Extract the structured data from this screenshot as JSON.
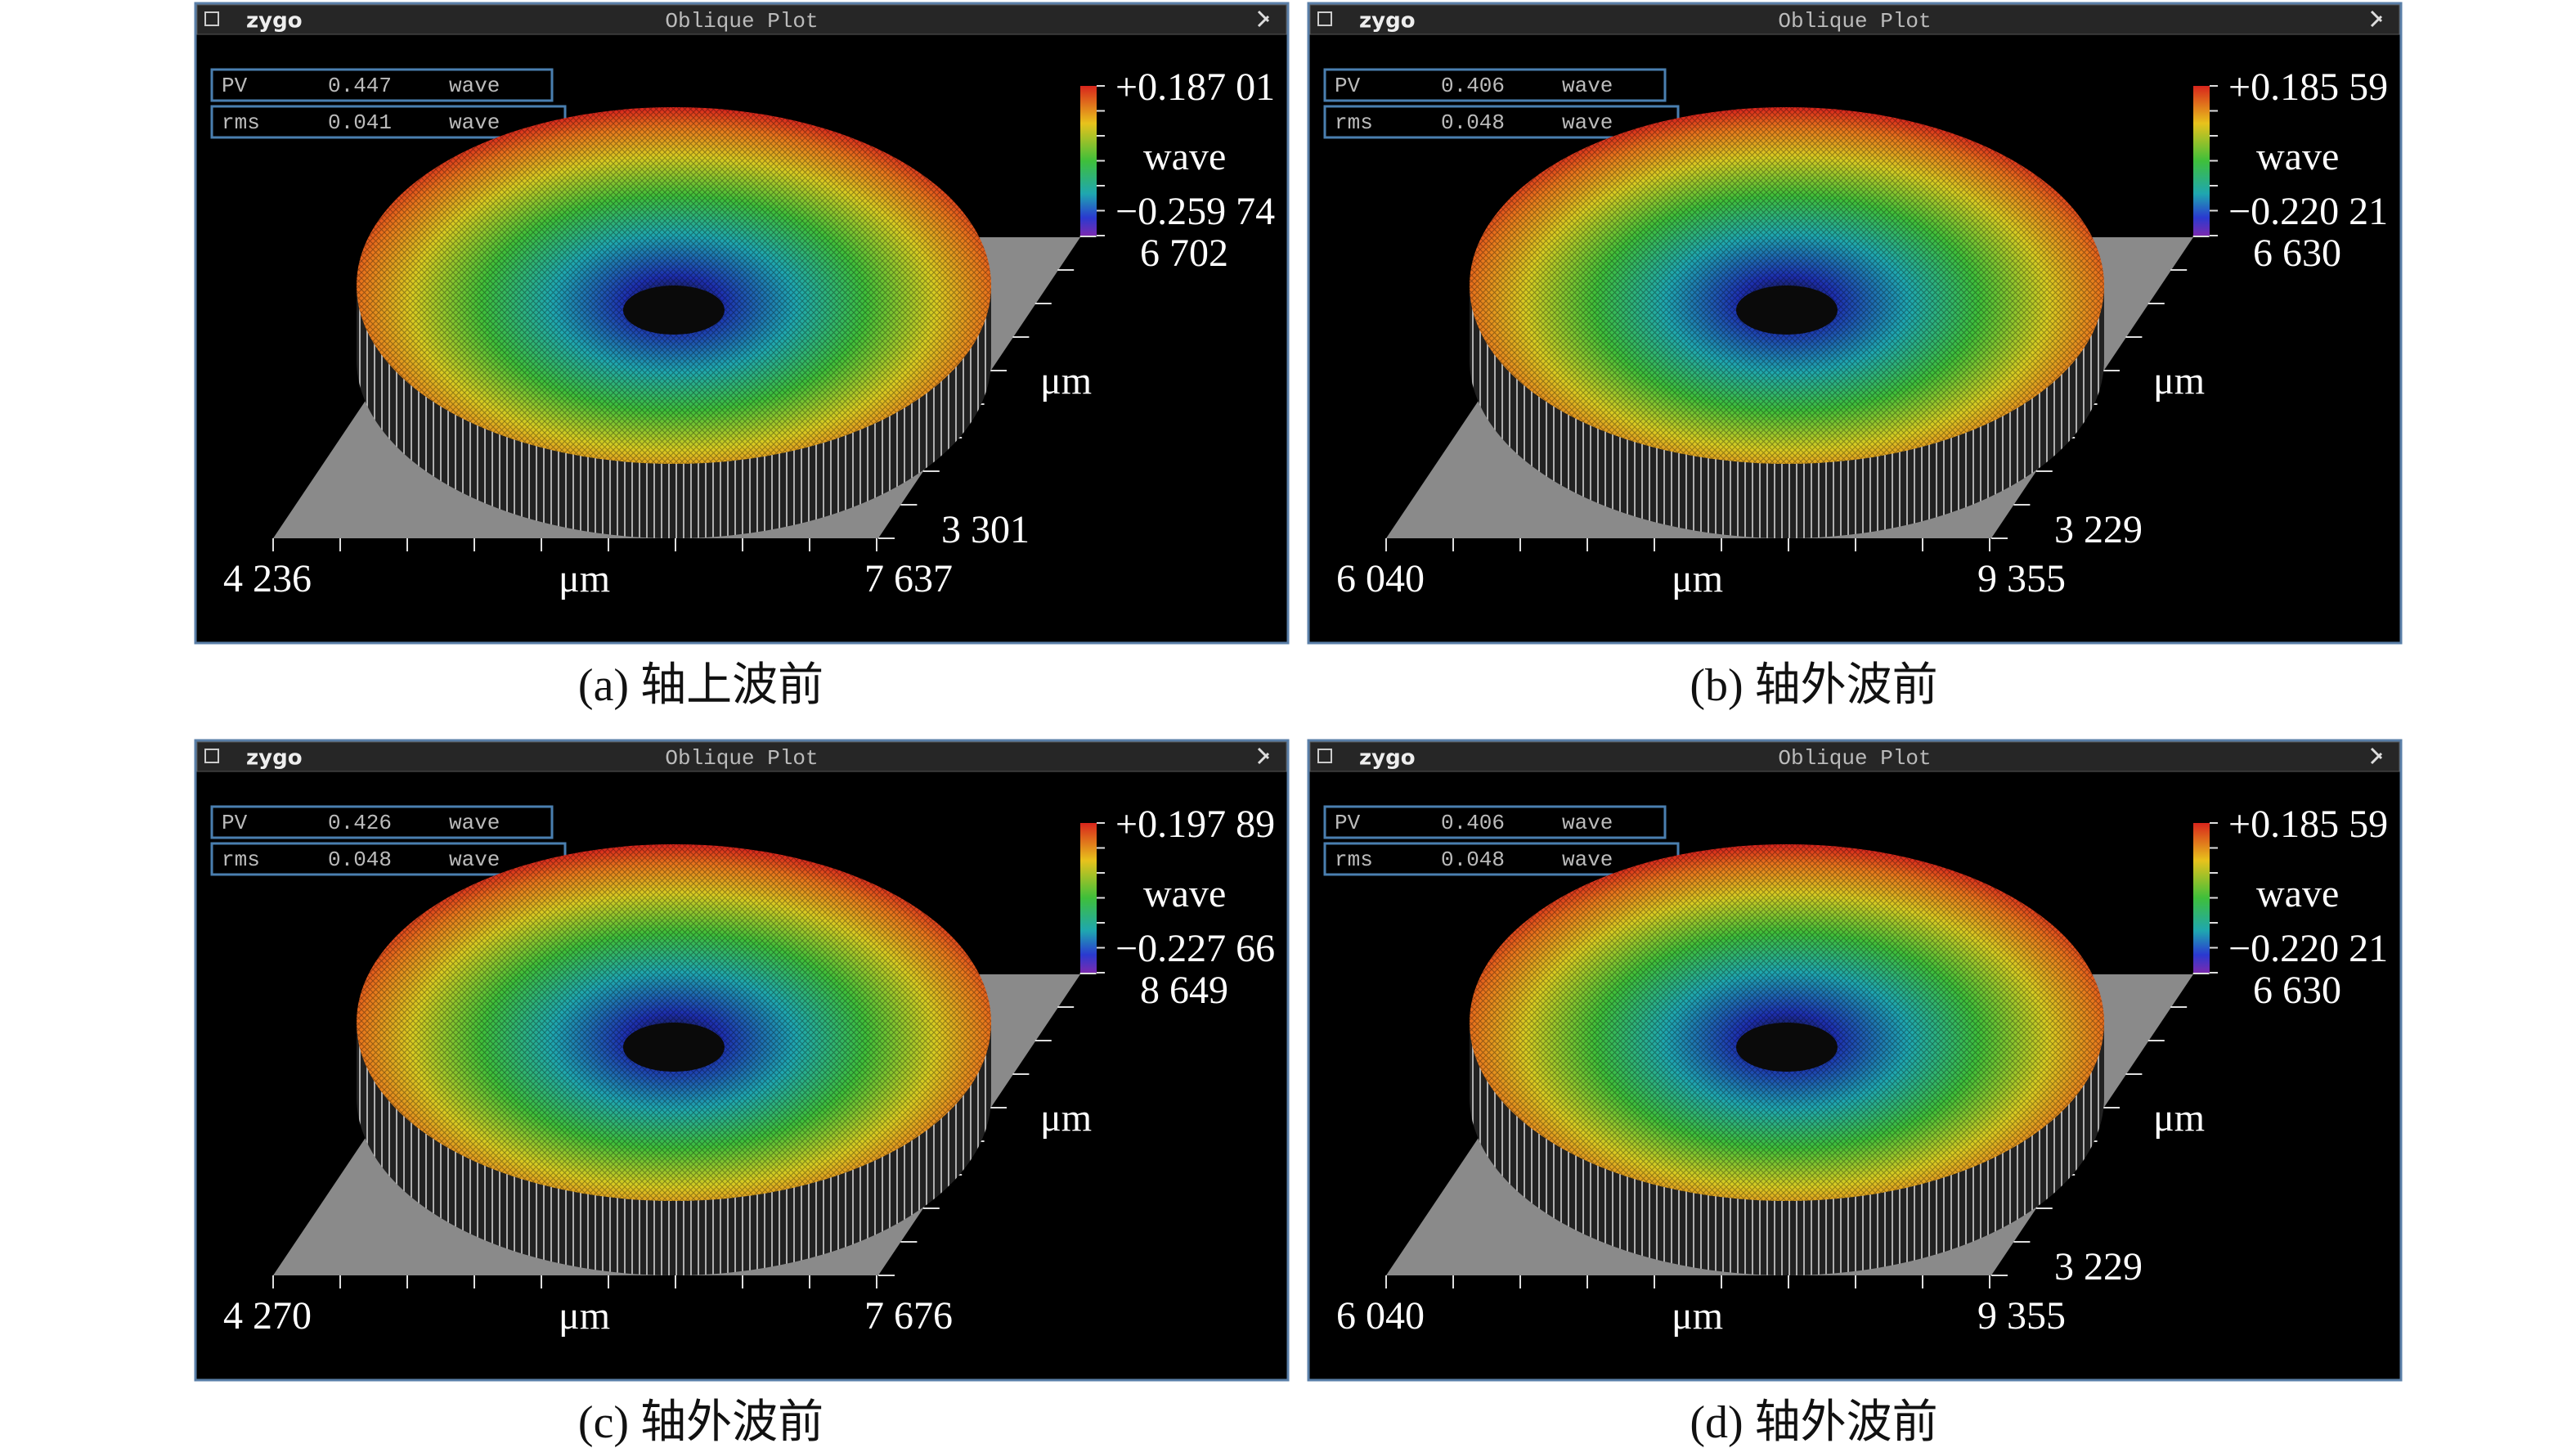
{
  "panels": [
    {
      "header": {
        "logo": "zygo",
        "title": "Oblique Plot"
      },
      "pv": {
        "label": "PV",
        "value": "0.447",
        "unit": "wave"
      },
      "rms": {
        "label": "rms",
        "value": "0.041",
        "unit": "wave"
      },
      "colorbar": {
        "max": "+0.187 01",
        "unit": "wave",
        "min": "−0.259 74"
      },
      "y_axis": {
        "max": "6 702",
        "unit": "μm",
        "min": "3 301"
      },
      "x_axis": {
        "min": "4 236",
        "unit": "μm",
        "max": "7 637"
      },
      "caption": "(a) 轴上波前"
    },
    {
      "header": {
        "logo": "zygo",
        "title": "Oblique Plot"
      },
      "pv": {
        "label": "PV",
        "value": "0.406",
        "unit": "wave"
      },
      "rms": {
        "label": "rms",
        "value": "0.048",
        "unit": "wave"
      },
      "colorbar": {
        "max": "+0.185 59",
        "unit": "wave",
        "min": "−0.220 21"
      },
      "y_axis": {
        "max": "6 630",
        "unit": "μm",
        "min": "3 229"
      },
      "x_axis": {
        "min": "6 040",
        "unit": "μm",
        "max": "9 355"
      },
      "caption": "(b) 轴外波前"
    },
    {
      "header": {
        "logo": "zygo",
        "title": "Oblique Plot"
      },
      "pv": {
        "label": "PV",
        "value": "0.426",
        "unit": "wave"
      },
      "rms": {
        "label": "rms",
        "value": "0.048",
        "unit": "wave"
      },
      "colorbar": {
        "max": "+0.197 89",
        "unit": "wave",
        "min": "−0.227 66"
      },
      "y_axis": {
        "max": "8 649",
        "unit": "μm"
      },
      "x_axis": {
        "min": "4 270",
        "unit": "μm",
        "max": "7 676"
      },
      "caption": "(c) 轴外波前"
    },
    {
      "header": {
        "logo": "zygo",
        "title": "Oblique Plot"
      },
      "pv": {
        "label": "PV",
        "value": "0.406",
        "unit": "wave"
      },
      "rms": {
        "label": "rms",
        "value": "0.048",
        "unit": "wave"
      },
      "colorbar": {
        "max": "+0.185 59",
        "unit": "wave",
        "min": "−0.220 21"
      },
      "y_axis": {
        "max": "6 630",
        "unit": "μm",
        "min": "3 229"
      },
      "x_axis": {
        "min": "6 040",
        "unit": "μm",
        "max": "9 355"
      },
      "caption": "(d) 轴外波前"
    }
  ]
}
